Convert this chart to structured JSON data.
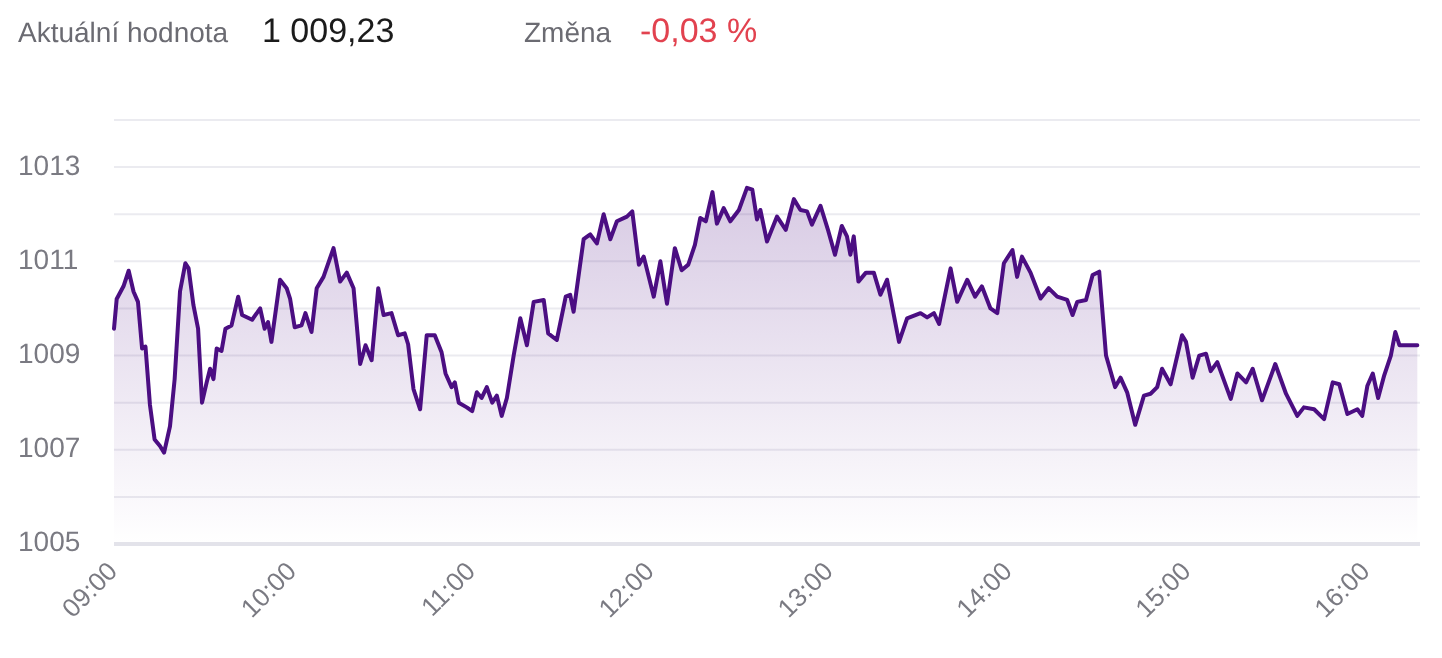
{
  "chart_data": {
    "type": "area",
    "annotations": [
      "Aktuální hodnota",
      "1 009,23",
      "Změna",
      "-0,03 %"
    ],
    "xlim": [
      9,
      16.3
    ],
    "xticks": [
      {
        "value": 9,
        "label": "09:00"
      },
      {
        "value": 10,
        "label": "10:00"
      },
      {
        "value": 11,
        "label": "11:00"
      },
      {
        "value": 12,
        "label": "12:00"
      },
      {
        "value": 13,
        "label": "13:00"
      },
      {
        "value": 14,
        "label": "14:00"
      },
      {
        "value": 15,
        "label": "15:00"
      },
      {
        "value": 16,
        "label": "16:00"
      }
    ],
    "ylim": [
      1005,
      1014
    ],
    "yticks": [
      1005,
      {
        "value": 1006,
        "label": null
      },
      1007,
      {
        "value": 1008,
        "label": null
      },
      1009,
      {
        "value": 1010,
        "label": null
      },
      1011,
      {
        "value": 1012,
        "label": null
      },
      1013,
      {
        "value": 1014,
        "label": null
      }
    ],
    "grid": "y",
    "marker": "none",
    "line_style": "solid",
    "series": [
      {
        "color": "#4b0e82",
        "x": [
          9.0,
          9.015,
          9.053,
          9.082,
          9.109,
          9.134,
          9.157,
          9.176,
          9.201,
          9.227,
          9.257,
          9.28,
          9.313,
          9.339,
          9.369,
          9.399,
          9.417,
          9.444,
          9.47,
          9.492,
          9.518,
          9.537,
          9.556,
          9.574,
          9.601,
          9.623,
          9.657,
          9.694,
          9.716,
          9.772,
          9.817,
          9.842,
          9.861,
          9.88,
          9.928,
          9.965,
          9.984,
          10.01,
          10.048,
          10.07,
          10.104,
          10.133,
          10.171,
          10.227,
          10.264,
          10.301,
          10.339,
          10.376,
          10.406,
          10.44,
          10.477,
          10.507,
          10.551,
          10.588,
          10.625,
          10.644,
          10.674,
          10.711,
          10.748,
          10.793,
          10.831,
          10.853,
          10.887,
          10.905,
          10.927,
          10.972,
          11.002,
          11.028,
          11.055,
          11.084,
          11.114,
          11.14,
          11.167,
          11.196,
          11.234,
          11.271,
          11.308,
          11.346,
          11.402,
          11.427,
          11.475,
          11.525,
          11.55,
          11.569,
          11.625,
          11.662,
          11.699,
          11.737,
          11.774,
          11.811,
          11.867,
          11.897,
          11.934,
          11.961,
          12.017,
          12.054,
          12.091,
          12.135,
          12.173,
          12.21,
          12.247,
          12.277,
          12.308,
          12.345,
          12.37,
          12.408,
          12.445,
          12.493,
          12.538,
          12.568,
          12.594,
          12.613,
          12.65,
          12.706,
          12.755,
          12.8,
          12.837,
          12.874,
          12.901,
          12.949,
          12.993,
          13.03,
          13.068,
          13.097,
          13.116,
          13.135,
          13.161,
          13.203,
          13.247,
          13.284,
          13.321,
          13.359,
          13.388,
          13.433,
          13.508,
          13.545,
          13.583,
          13.612,
          13.676,
          13.713,
          13.769,
          13.813,
          13.851,
          13.899,
          13.937,
          13.974,
          14.022,
          14.048,
          14.075,
          14.123,
          14.179,
          14.224,
          14.272,
          14.328,
          14.358,
          14.384,
          14.433,
          14.47,
          14.507,
          14.545,
          14.596,
          14.626,
          14.663,
          14.708,
          14.757,
          14.794,
          14.831,
          14.858,
          14.906,
          14.97,
          14.992,
          15.029,
          15.066,
          15.104,
          15.13,
          15.167,
          15.242,
          15.279,
          15.328,
          15.365,
          15.417,
          15.491,
          15.551,
          15.614,
          15.651,
          15.708,
          15.764,
          15.812,
          15.849,
          15.894,
          15.95,
          15.977,
          16.006,
          16.036,
          16.066,
          16.1,
          16.137,
          16.162,
          16.185,
          16.285
        ],
        "values": [
          1009.57,
          1010.2,
          1010.47,
          1010.8,
          1010.36,
          1010.14,
          1009.15,
          1009.19,
          1007.95,
          1007.22,
          1007.08,
          1006.94,
          1007.5,
          1008.5,
          1010.36,
          1010.96,
          1010.85,
          1010.07,
          1009.57,
          1008.0,
          1008.43,
          1008.72,
          1008.5,
          1009.15,
          1009.1,
          1009.57,
          1009.64,
          1010.25,
          1009.86,
          1009.76,
          1010.0,
          1009.57,
          1009.71,
          1009.29,
          1010.61,
          1010.43,
          1010.21,
          1009.6,
          1009.64,
          1009.9,
          1009.5,
          1010.43,
          1010.67,
          1011.28,
          1010.57,
          1010.76,
          1010.43,
          1008.82,
          1009.22,
          1008.9,
          1010.43,
          1009.86,
          1009.9,
          1009.43,
          1009.47,
          1009.24,
          1008.29,
          1007.86,
          1009.43,
          1009.43,
          1009.07,
          1008.62,
          1008.33,
          1008.43,
          1008.0,
          1007.9,
          1007.82,
          1008.22,
          1008.1,
          1008.33,
          1008.0,
          1008.15,
          1007.72,
          1008.1,
          1009.0,
          1009.79,
          1009.22,
          1010.14,
          1010.18,
          1009.47,
          1009.33,
          1010.25,
          1010.29,
          1009.93,
          1011.47,
          1011.57,
          1011.38,
          1012.0,
          1011.47,
          1011.85,
          1011.95,
          1012.06,
          1010.93,
          1011.1,
          1010.25,
          1011.0,
          1010.1,
          1011.28,
          1010.81,
          1010.93,
          1011.35,
          1011.92,
          1011.85,
          1012.47,
          1011.8,
          1012.13,
          1011.85,
          1012.09,
          1012.56,
          1012.52,
          1011.89,
          1012.09,
          1011.42,
          1011.95,
          1011.67,
          1012.32,
          1012.09,
          1012.06,
          1011.78,
          1012.18,
          1011.64,
          1011.14,
          1011.75,
          1011.53,
          1011.14,
          1011.53,
          1010.57,
          1010.76,
          1010.76,
          1010.29,
          1010.61,
          1009.86,
          1009.29,
          1009.79,
          1009.9,
          1009.81,
          1009.9,
          1009.67,
          1010.85,
          1010.14,
          1010.61,
          1010.25,
          1010.47,
          1010.0,
          1009.9,
          1010.96,
          1011.24,
          1010.67,
          1011.1,
          1010.76,
          1010.21,
          1010.43,
          1010.25,
          1010.18,
          1009.86,
          1010.14,
          1010.18,
          1010.71,
          1010.78,
          1009.0,
          1008.33,
          1008.53,
          1008.22,
          1007.53,
          1008.15,
          1008.19,
          1008.33,
          1008.72,
          1008.39,
          1009.43,
          1009.29,
          1008.53,
          1009.0,
          1009.04,
          1008.67,
          1008.86,
          1008.08,
          1008.62,
          1008.43,
          1008.72,
          1008.05,
          1008.82,
          1008.19,
          1007.72,
          1007.9,
          1007.86,
          1007.65,
          1008.43,
          1008.39,
          1007.76,
          1007.86,
          1007.72,
          1008.36,
          1008.62,
          1008.1,
          1008.58,
          1009.0,
          1009.5,
          1009.22,
          1009.22
        ]
      }
    ]
  }
}
